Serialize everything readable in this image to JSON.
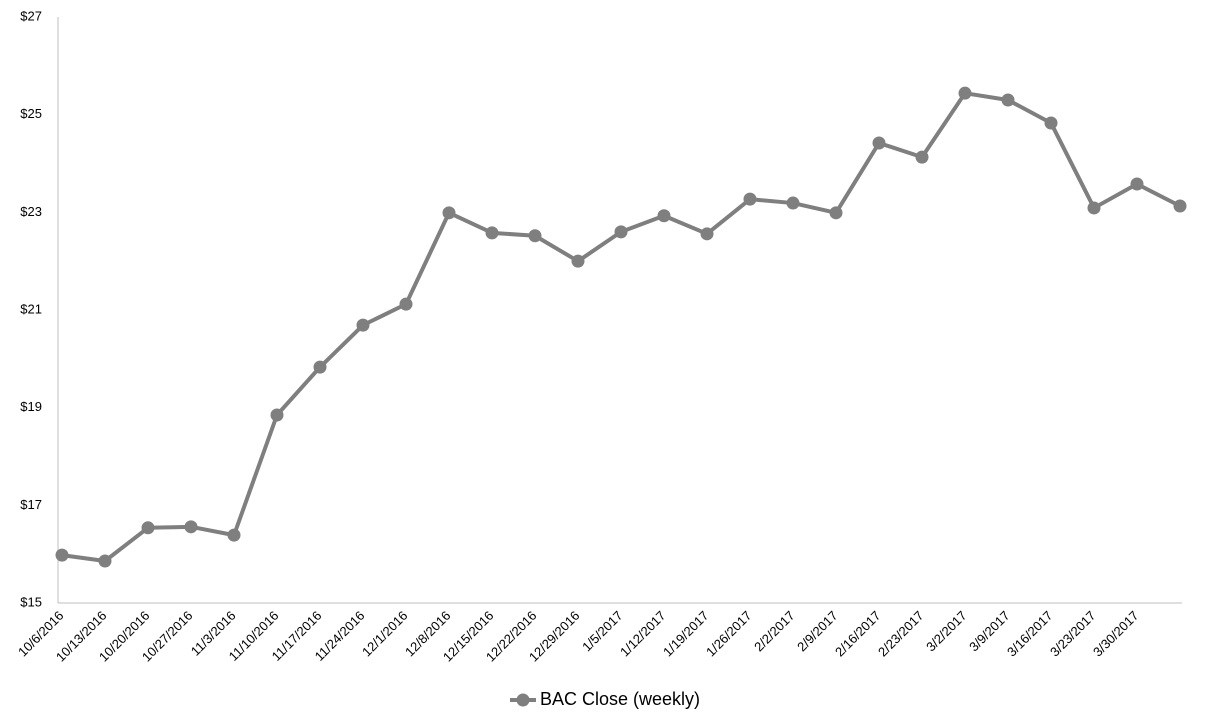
{
  "chart_data": {
    "type": "line",
    "categories": [
      "10/6/2016",
      "10/13/2016",
      "10/20/2016",
      "10/27/2016",
      "11/3/2016",
      "11/10/2016",
      "11/17/2016",
      "11/24/2016",
      "12/1/2016",
      "12/8/2016",
      "12/15/2016",
      "12/22/2016",
      "12/29/2016",
      "1/5/2017",
      "1/12/2017",
      "1/19/2017",
      "1/26/2017",
      "2/2/2017",
      "2/9/2017",
      "2/16/2017",
      "2/23/2017",
      "3/2/2017",
      "3/9/2017",
      "3/16/2017",
      "3/23/2017",
      "3/30/2017",
      null
    ],
    "series": [
      {
        "name": "BAC Close (weekly)",
        "color": "#7f7f7f",
        "values": [
          15.98,
          15.86,
          16.54,
          16.56,
          16.39,
          18.85,
          19.83,
          20.69,
          21.12,
          22.99,
          22.58,
          22.52,
          22.0,
          22.6,
          22.93,
          22.56,
          23.27,
          23.19,
          22.99,
          24.42,
          24.13,
          25.44,
          25.3,
          24.83,
          23.09,
          23.58,
          23.13
        ]
      }
    ],
    "ylim": [
      15,
      27
    ],
    "yticks": [
      {
        "value": 15,
        "label": "$15"
      },
      {
        "value": 17,
        "label": "$17"
      },
      {
        "value": 19,
        "label": "$19"
      },
      {
        "value": 21,
        "label": "$21"
      },
      {
        "value": 23,
        "label": "$23"
      },
      {
        "value": 25,
        "label": "$25"
      },
      {
        "value": 27,
        "label": "$27"
      }
    ],
    "grid": false,
    "legend": "bottom"
  }
}
